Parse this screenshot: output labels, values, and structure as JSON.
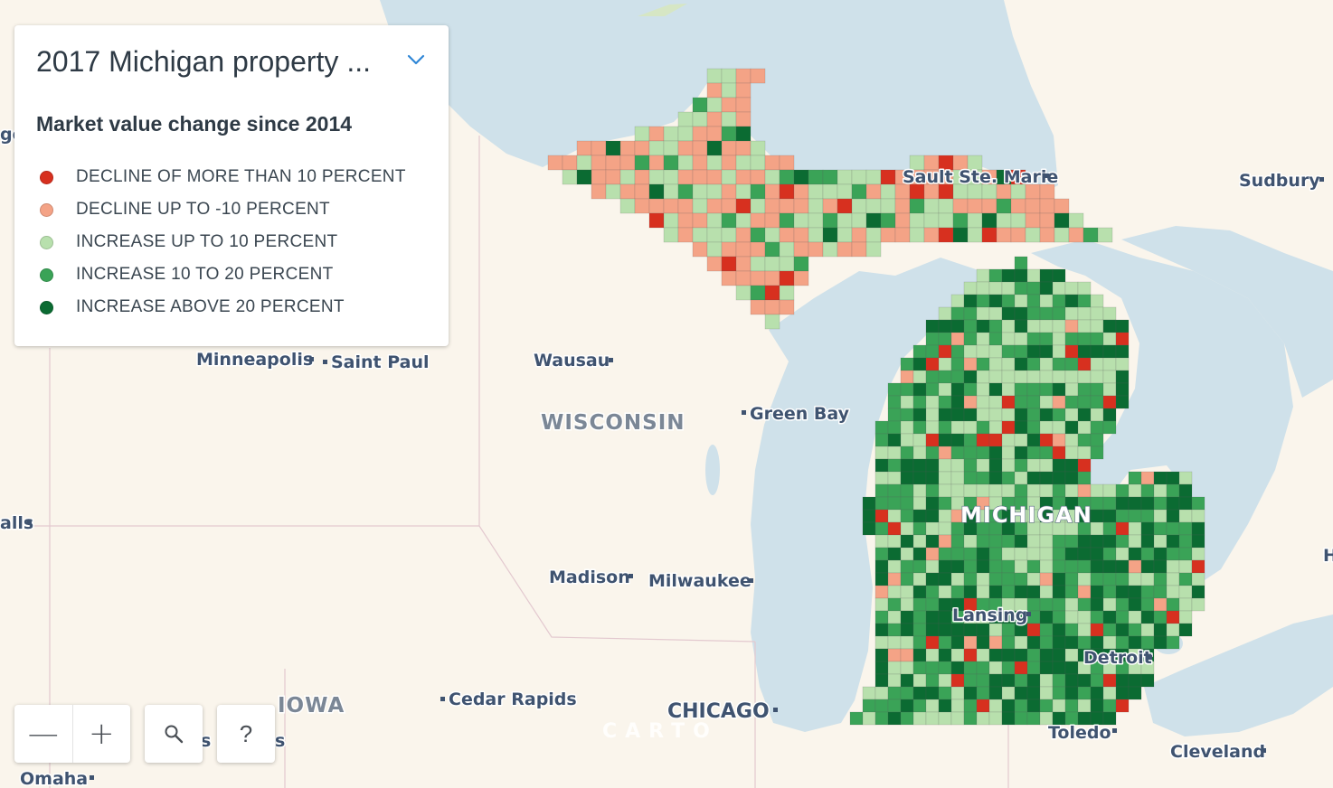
{
  "legend": {
    "title": "2017 Michigan property ...",
    "subtitle": "Market value change since 2014",
    "items": [
      {
        "label": "DECLINE OF MORE THAN 10 PERCENT",
        "color": "#d7301f"
      },
      {
        "label": "DECLINE UP TO -10 PERCENT",
        "color": "#f4a386"
      },
      {
        "label": "INCREASE UP TO 10 PERCENT",
        "color": "#b8e0ad"
      },
      {
        "label": "INCREASE 10 TO 20 PERCENT",
        "color": "#3aa357"
      },
      {
        "label": "INCREASE ABOVE 20 PERCENT",
        "color": "#0b6b32"
      }
    ]
  },
  "places": {
    "minneapolis": "Minneapolis",
    "saint_paul": "Saint Paul",
    "wausau": "Wausau",
    "green_bay": "Green Bay",
    "madison": "Madison",
    "milwaukee": "Milwaukee",
    "cedar_rapids": "Cedar Rapids",
    "chicago": "CHICAGO",
    "toledo": "Toledo",
    "cleveland": "Cleveland",
    "detroit": "Detroit",
    "lansing": "Lansing",
    "sault_ste_marie": "Sault Ste. Marie",
    "sudbury": "Sudbury",
    "omaha": "Omaha",
    "falls_partial": "alls",
    "go_partial": "go",
    "h_partial": "H",
    "sioux_partial": "s I",
    "sioux_partial2": "s"
  },
  "states": {
    "wisconsin": "WISCONSIN",
    "michigan": "MICHIGAN",
    "iowa": "IOWA"
  },
  "controls": {
    "zoom_out": "—",
    "zoom_in": "+",
    "search_icon": "search-icon",
    "help": "?"
  },
  "attribution": "CARTO",
  "colors": {
    "water": "#cfe1ea",
    "land": "#faf5ec"
  }
}
